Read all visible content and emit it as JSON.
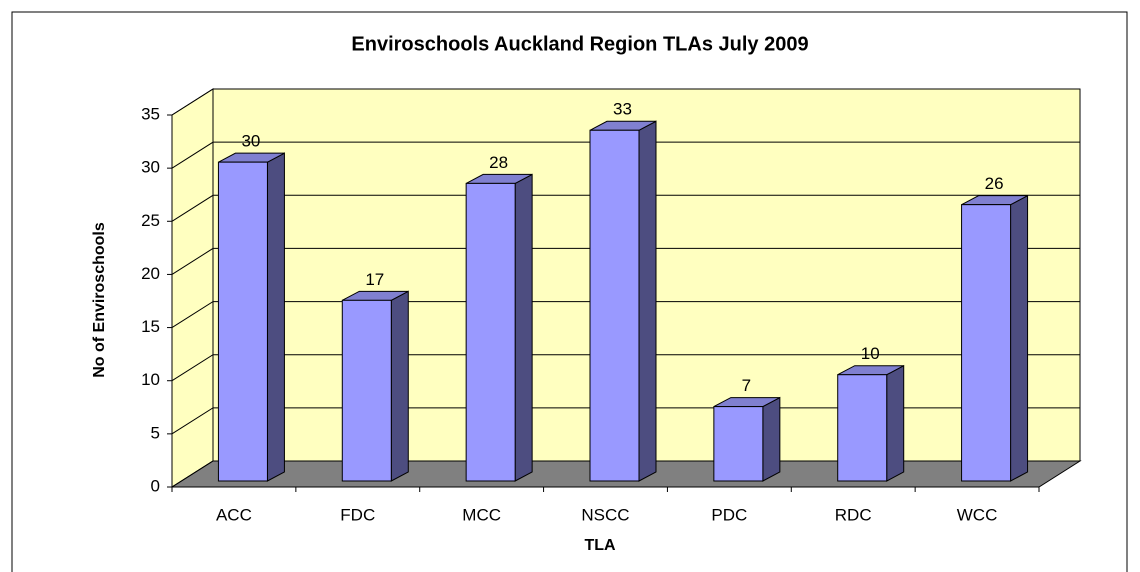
{
  "chart_data": {
    "type": "bar3d",
    "title": "Enviroschools Auckland Region TLAs July 2009",
    "x_label": "TLA",
    "y_label": "No of Enviroschools",
    "categories": [
      "ACC",
      "FDC",
      "MCC",
      "NSCC",
      "PDC",
      "RDC",
      "WCC"
    ],
    "values": [
      30,
      17,
      28,
      33,
      7,
      10,
      26
    ],
    "color": "#9999ff",
    "ylim": [
      0,
      35
    ],
    "yticks": [
      0,
      5,
      10,
      15,
      20,
      25,
      30,
      35
    ],
    "grid": true
  }
}
